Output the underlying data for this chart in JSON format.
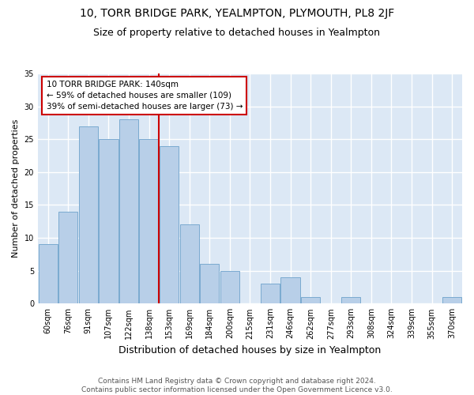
{
  "title": "10, TORR BRIDGE PARK, YEALMPTON, PLYMOUTH, PL8 2JF",
  "subtitle": "Size of property relative to detached houses in Yealmpton",
  "xlabel": "Distribution of detached houses by size in Yealmpton",
  "ylabel": "Number of detached properties",
  "categories": [
    "60sqm",
    "76sqm",
    "91sqm",
    "107sqm",
    "122sqm",
    "138sqm",
    "153sqm",
    "169sqm",
    "184sqm",
    "200sqm",
    "215sqm",
    "231sqm",
    "246sqm",
    "262sqm",
    "277sqm",
    "293sqm",
    "308sqm",
    "324sqm",
    "339sqm",
    "355sqm",
    "370sqm"
  ],
  "values": [
    9,
    14,
    27,
    25,
    28,
    25,
    24,
    12,
    6,
    5,
    0,
    3,
    4,
    1,
    0,
    1,
    0,
    0,
    0,
    0,
    1
  ],
  "bar_color": "#b8cfe8",
  "bar_edge_color": "#7aaad0",
  "background_color": "#dce8f5",
  "grid_color": "#ffffff",
  "vline_x_index": 5,
  "vline_color": "#cc0000",
  "annotation_line1": "10 TORR BRIDGE PARK: 140sqm",
  "annotation_line2": "← 59% of detached houses are smaller (109)",
  "annotation_line3": "39% of semi-detached houses are larger (73) →",
  "annotation_box_color": "#ffffff",
  "annotation_box_edge_color": "#cc0000",
  "ylim": [
    0,
    35
  ],
  "yticks": [
    0,
    5,
    10,
    15,
    20,
    25,
    30,
    35
  ],
  "footer_text": "Contains HM Land Registry data © Crown copyright and database right 2024.\nContains public sector information licensed under the Open Government Licence v3.0.",
  "title_fontsize": 10,
  "subtitle_fontsize": 9,
  "xlabel_fontsize": 9,
  "ylabel_fontsize": 8,
  "tick_fontsize": 7,
  "annotation_fontsize": 7.5,
  "footer_fontsize": 6.5
}
